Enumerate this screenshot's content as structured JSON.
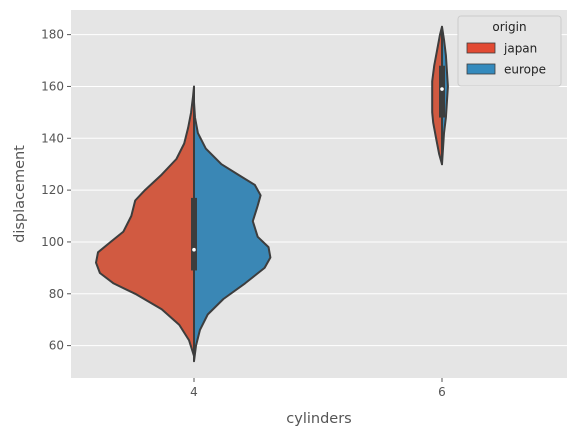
{
  "chart_data": {
    "type": "violin",
    "split": true,
    "xlabel": "cylinders",
    "ylabel": "displacement",
    "categories": [
      "4",
      "6"
    ],
    "ylim": [
      47.5,
      189.5
    ],
    "yticks": [
      60,
      80,
      100,
      120,
      140,
      160,
      180
    ],
    "grid": true,
    "legend": {
      "title": "origin",
      "position": "top-right",
      "entries": [
        {
          "name": "japan",
          "color": "#e24a33"
        },
        {
          "name": "europe",
          "color": "#348abd"
        }
      ]
    },
    "series": [
      {
        "name": "japan",
        "side": "left",
        "color": "#d15a41",
        "violins": [
          {
            "category": "4",
            "profile": [
              [
                56,
                0.0
              ],
              [
                62,
                0.05
              ],
              [
                68,
                0.15
              ],
              [
                74,
                0.33
              ],
              [
                80,
                0.6
              ],
              [
                84,
                0.82
              ],
              [
                88,
                0.96
              ],
              [
                92,
                1.0
              ],
              [
                96,
                0.98
              ],
              [
                100,
                0.85
              ],
              [
                104,
                0.72
              ],
              [
                110,
                0.64
              ],
              [
                116,
                0.6
              ],
              [
                120,
                0.5
              ],
              [
                126,
                0.33
              ],
              [
                132,
                0.18
              ],
              [
                138,
                0.1
              ],
              [
                144,
                0.06
              ],
              [
                150,
                0.03
              ],
              [
                156,
                0.01
              ],
              [
                160,
                0.0
              ]
            ]
          },
          {
            "category": "6",
            "profile": [
              [
                130,
                0.0
              ],
              [
                134,
                0.03
              ],
              [
                140,
                0.06
              ],
              [
                146,
                0.09
              ],
              [
                150,
                0.1
              ],
              [
                156,
                0.1
              ],
              [
                162,
                0.1
              ],
              [
                168,
                0.08
              ],
              [
                174,
                0.05
              ],
              [
                180,
                0.02
              ],
              [
                183,
                0.0
              ]
            ]
          }
        ]
      },
      {
        "name": "europe",
        "side": "right",
        "color": "#3a87b5",
        "violins": [
          {
            "category": "4",
            "profile": [
              [
                54,
                0.0
              ],
              [
                60,
                0.02
              ],
              [
                66,
                0.06
              ],
              [
                72,
                0.14
              ],
              [
                78,
                0.3
              ],
              [
                84,
                0.52
              ],
              [
                90,
                0.72
              ],
              [
                94,
                0.78
              ],
              [
                98,
                0.76
              ],
              [
                102,
                0.65
              ],
              [
                108,
                0.6
              ],
              [
                114,
                0.65
              ],
              [
                118,
                0.68
              ],
              [
                122,
                0.62
              ],
              [
                126,
                0.45
              ],
              [
                130,
                0.28
              ],
              [
                136,
                0.12
              ],
              [
                142,
                0.04
              ],
              [
                148,
                0.01
              ],
              [
                154,
                0.0
              ]
            ]
          },
          {
            "category": "6",
            "profile": [
              [
                130,
                0.0
              ],
              [
                136,
                0.01
              ],
              [
                142,
                0.02
              ],
              [
                148,
                0.04
              ],
              [
                154,
                0.05
              ],
              [
                160,
                0.06
              ],
              [
                166,
                0.05
              ],
              [
                172,
                0.04
              ],
              [
                178,
                0.02
              ],
              [
                183,
                0.0
              ]
            ]
          }
        ]
      }
    ],
    "box": [
      {
        "category": "4",
        "q1": 89,
        "median": 97,
        "q3": 117,
        "whisker_low": 56,
        "whisker_high": 160
      },
      {
        "category": "6",
        "q1": 148,
        "median": 159,
        "q3": 168,
        "whisker_low": 133,
        "whisker_high": 181
      }
    ],
    "colors": {
      "panel": "#e5e5e5",
      "grid": "#ffffff",
      "outline": "#3d3d3d",
      "box": "#3d3d3d",
      "median": "#ffffff"
    }
  }
}
